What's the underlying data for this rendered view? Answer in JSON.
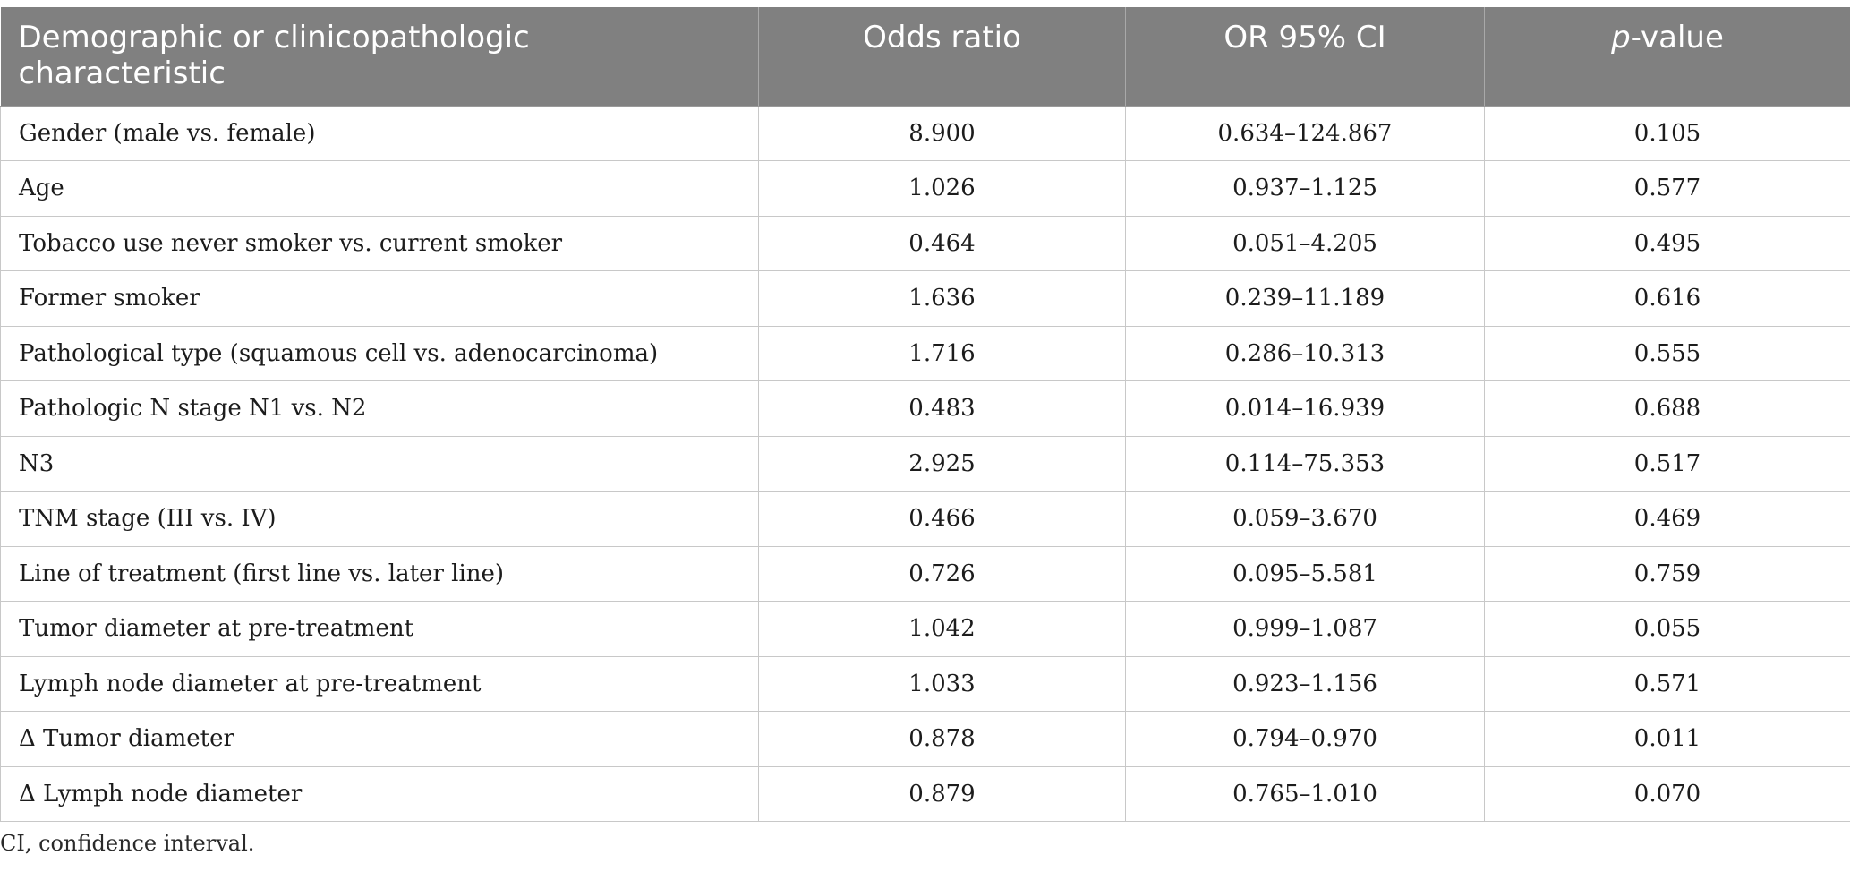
{
  "table": {
    "headers": {
      "characteristic": "Demographic or clinicopathologic characteristic",
      "odds_ratio": "Odds ratio",
      "ci": "OR 95% CI",
      "p_prefix": "p",
      "p_suffix": "-value"
    },
    "rows": [
      {
        "label": "Gender (male vs. female)",
        "or": "8.900",
        "ci": "0.634–124.867",
        "p": "0.105"
      },
      {
        "label": "Age",
        "or": "1.026",
        "ci": "0.937–1.125",
        "p": "0.577"
      },
      {
        "label": "Tobacco use never smoker vs. current smoker",
        "or": "0.464",
        "ci": "0.051–4.205",
        "p": "0.495"
      },
      {
        "label": "Former smoker",
        "or": "1.636",
        "ci": "0.239–11.189",
        "p": "0.616"
      },
      {
        "label": "Pathological type (squamous cell vs. adenocarcinoma)",
        "or": "1.716",
        "ci": "0.286–10.313",
        "p": "0.555"
      },
      {
        "label": "Pathologic N stage N1 vs. N2",
        "or": "0.483",
        "ci": "0.014–16.939",
        "p": "0.688"
      },
      {
        "label": "N3",
        "or": "2.925",
        "ci": "0.114–75.353",
        "p": "0.517"
      },
      {
        "label": "TNM stage (III vs. IV)",
        "or": "0.466",
        "ci": "0.059–3.670",
        "p": "0.469"
      },
      {
        "label": "Line of treatment (first line vs. later line)",
        "or": "0.726",
        "ci": "0.095–5.581",
        "p": "0.759"
      },
      {
        "label": "Tumor diameter at pre-treatment",
        "or": "1.042",
        "ci": "0.999–1.087",
        "p": "0.055"
      },
      {
        "label": "Lymph node diameter at pre-treatment",
        "or": "1.033",
        "ci": "0.923–1.156",
        "p": "0.571"
      },
      {
        "label": "Δ Tumor diameter",
        "or": "0.878",
        "ci": "0.794–0.970",
        "p": "0.011"
      },
      {
        "label": "Δ Lymph node diameter",
        "or": "0.879",
        "ci": "0.765–1.010",
        "p": "0.070"
      }
    ]
  },
  "footnote": "CI, confidence interval."
}
